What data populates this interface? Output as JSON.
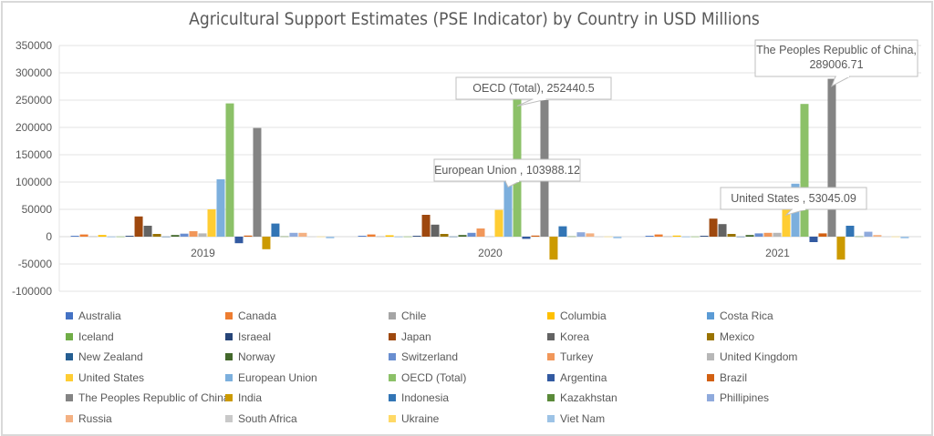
{
  "chart_data": {
    "type": "bar",
    "title": "Agricultural Support Estimates (PSE Indicator) by Country in USD Millions",
    "categories": [
      "2019",
      "2020",
      "2021"
    ],
    "ylim": [
      -100000,
      350000
    ],
    "yticks": [
      "350000",
      "300000",
      "250000",
      "200000",
      "150000",
      "100000",
      "50000",
      "0",
      "-50000",
      "-100000"
    ],
    "grid": true,
    "legend_position": "bottom",
    "series": [
      {
        "name": "Australia",
        "color": "#4472C4",
        "values": [
          1500,
          1500,
          1500
        ]
      },
      {
        "name": "Canada",
        "color": "#ED7D31",
        "values": [
          4000,
          4000,
          4000
        ]
      },
      {
        "name": "Chile",
        "color": "#A5A5A5",
        "values": [
          500,
          500,
          500
        ]
      },
      {
        "name": "Columbia",
        "color": "#FFC000",
        "values": [
          3000,
          2500,
          2000
        ]
      },
      {
        "name": "Costa Rica",
        "color": "#5B9BD5",
        "values": [
          200,
          200,
          200
        ]
      },
      {
        "name": "Iceland",
        "color": "#70AD47",
        "values": [
          300,
          300,
          300
        ]
      },
      {
        "name": "Israeal",
        "color": "#264478",
        "values": [
          1500,
          1500,
          1500
        ]
      },
      {
        "name": "Japan",
        "color": "#9E480E",
        "values": [
          37000,
          40000,
          33000
        ]
      },
      {
        "name": "Korea",
        "color": "#636363",
        "values": [
          20000,
          22000,
          23000
        ]
      },
      {
        "name": "Mexico",
        "color": "#997300",
        "values": [
          5000,
          5000,
          5000
        ]
      },
      {
        "name": "New Zealand",
        "color": "#255E91",
        "values": [
          200,
          300,
          200
        ]
      },
      {
        "name": "Norway",
        "color": "#43682B",
        "values": [
          3000,
          3000,
          3000
        ]
      },
      {
        "name": "Switzerland",
        "color": "#698ED0",
        "values": [
          5500,
          7000,
          6000
        ]
      },
      {
        "name": "Turkey",
        "color": "#F1975A",
        "values": [
          10000,
          15000,
          7000
        ]
      },
      {
        "name": "United Kingdom",
        "color": "#B7B7B7",
        "values": [
          6000,
          500,
          7000
        ]
      },
      {
        "name": "United States",
        "color": "#FFCD33",
        "values": [
          50000,
          49000,
          53045.09
        ]
      },
      {
        "name": "European Union",
        "color": "#7CAFDD",
        "values": [
          105000,
          103988.12,
          97000
        ]
      },
      {
        "name": "OECD (Total)",
        "color": "#8CC168",
        "values": [
          244000,
          252440.5,
          243000
        ]
      },
      {
        "name": "Argentina",
        "color": "#335AA1",
        "values": [
          -12000,
          -4000,
          -10000
        ]
      },
      {
        "name": "Brazil",
        "color": "#D26012",
        "values": [
          2000,
          2000,
          6000
        ]
      },
      {
        "name": "The Peoples Republic of China",
        "color": "#848484",
        "values": [
          199000,
          250000,
          289006.71
        ]
      },
      {
        "name": "India",
        "color": "#CC9A00",
        "values": [
          -23000,
          -42000,
          -42000
        ]
      },
      {
        "name": "Indonesia",
        "color": "#3275B5",
        "values": [
          24000,
          19000,
          20000
        ]
      },
      {
        "name": "Kazakhstan",
        "color": "#5A8A39",
        "values": [
          500,
          500,
          500
        ]
      },
      {
        "name": "Phillipines",
        "color": "#8FAADC",
        "values": [
          7000,
          8000,
          9000
        ]
      },
      {
        "name": "Russia",
        "color": "#F4B183",
        "values": [
          7000,
          6000,
          3000
        ]
      },
      {
        "name": "South Africa",
        "color": "#C9C9C9",
        "values": [
          300,
          300,
          300
        ]
      },
      {
        "name": "Ukraine",
        "color": "#FFD966",
        "values": [
          300,
          300,
          300
        ]
      },
      {
        "name": "Viet Nam",
        "color": "#9DC3E6",
        "values": [
          -3000,
          -3000,
          -3000
        ]
      }
    ],
    "annotations": [
      {
        "series": "OECD (Total)",
        "category": "2020",
        "text": "OECD (Total), 252440.5"
      },
      {
        "series": "European Union",
        "category": "2020",
        "text": "European Union , 103988.12"
      },
      {
        "series": "The Peoples Republic of China",
        "category": "2021",
        "lines": [
          "The Peoples Republic of China,",
          "289006.71"
        ]
      },
      {
        "series": "United States",
        "category": "2021",
        "text": "United States , 53045.09"
      }
    ]
  }
}
